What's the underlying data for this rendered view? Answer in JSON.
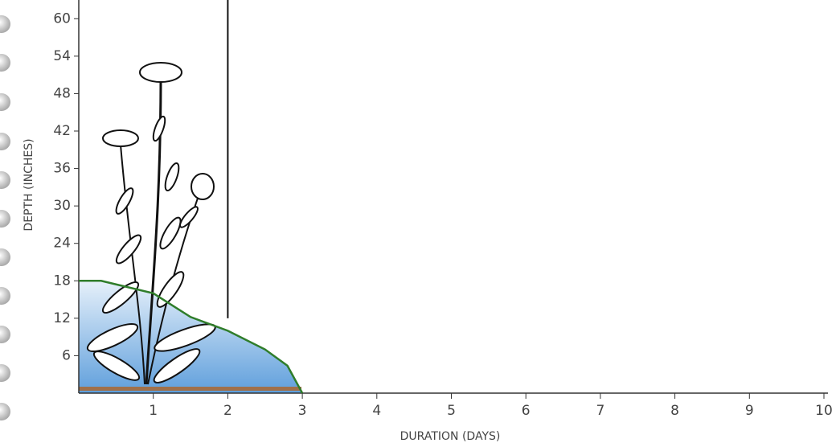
{
  "chart_data": {
    "type": "area",
    "x_label": "DURATION (DAYS)",
    "y_label": "DEPTH (INCHES)",
    "xlim": [
      0,
      10
    ],
    "ylim": [
      0,
      63
    ],
    "xticks": [
      1,
      2,
      3,
      4,
      5,
      6,
      7,
      8,
      9,
      10
    ],
    "yticks": [
      6,
      12,
      18,
      24,
      30,
      36,
      42,
      48,
      54,
      60
    ],
    "series": [
      {
        "color": "#2f7d2a",
        "x": [
          0,
          0.3,
          1,
          1.5,
          2,
          2.5,
          2.8,
          3
        ],
        "values": [
          18,
          18,
          16,
          12.2,
          10,
          7,
          4.4,
          0
        ]
      }
    ],
    "reference_lines": [
      {
        "x": 2
      }
    ]
  }
}
